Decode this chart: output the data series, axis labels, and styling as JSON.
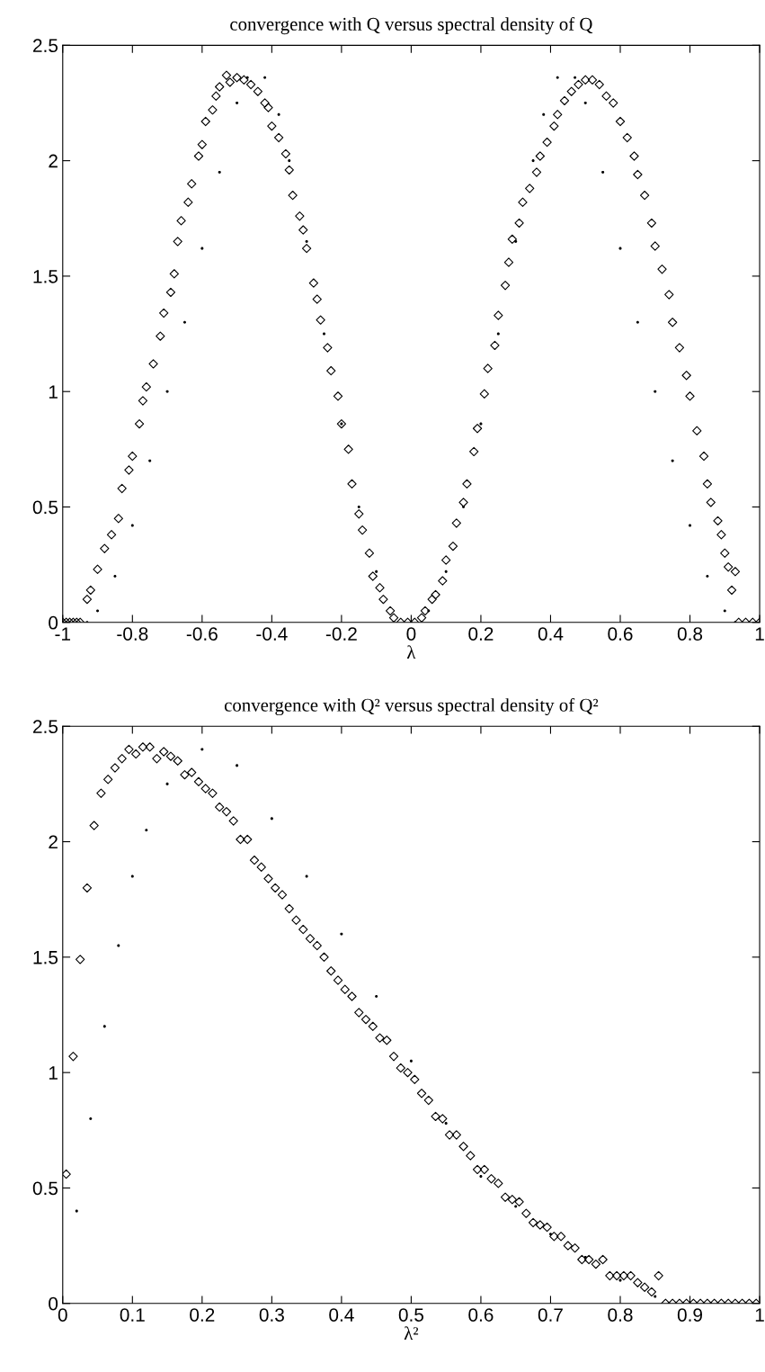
{
  "chart_data": [
    {
      "type": "scatter",
      "title": "convergence with Q versus spectral density of Q",
      "xlabel": "λ",
      "xlim": [
        -1,
        1
      ],
      "ylim": [
        0,
        2.5
      ],
      "xticks": [
        -1,
        -0.8,
        -0.6,
        -0.4,
        -0.2,
        0,
        0.2,
        0.4,
        0.6,
        0.8,
        1
      ],
      "yticks": [
        0,
        0.5,
        1,
        1.5,
        2,
        2.5
      ],
      "grid": false,
      "series": [
        {
          "color": "#000000",
          "marker": "circle",
          "x": [
            -0.93,
            -0.9,
            -0.85,
            -0.8,
            -0.75,
            -0.7,
            -0.65,
            -0.6,
            -0.55,
            -0.5,
            -0.47,
            -0.42,
            -0.38,
            -0.35,
            -0.3,
            -0.25,
            -0.2,
            -0.15,
            -0.1,
            -0.05,
            0,
            0.05,
            0.1,
            0.15,
            0.2,
            0.25,
            0.3,
            0.35,
            0.38,
            0.42,
            0.47,
            0.5,
            0.55,
            0.6,
            0.65,
            0.7,
            0.75,
            0.8,
            0.85,
            0.9,
            0.93
          ],
          "values": [
            0,
            0.05,
            0.2,
            0.42,
            0.7,
            1.0,
            1.3,
            1.62,
            1.95,
            2.25,
            2.36,
            2.36,
            2.2,
            2.0,
            1.65,
            1.25,
            0.86,
            0.5,
            0.22,
            null,
            0,
            0.05,
            0.22,
            0.5,
            0.86,
            1.25,
            1.65,
            2.0,
            2.2,
            2.36,
            2.36,
            2.25,
            1.95,
            1.62,
            1.3,
            1.0,
            0.7,
            0.42,
            0.2,
            0.05,
            0
          ]
        },
        {
          "color": "#000000",
          "marker": "diamond",
          "x": [
            -1,
            -0.99,
            -0.98,
            -0.97,
            -0.96,
            -0.95,
            -0.93,
            -0.92,
            -0.9,
            -0.88,
            -0.86,
            -0.84,
            -0.83,
            -0.81,
            -0.8,
            -0.78,
            -0.77,
            -0.76,
            -0.74,
            -0.72,
            -0.71,
            -0.69,
            -0.68,
            -0.67,
            -0.66,
            -0.64,
            -0.63,
            -0.61,
            -0.6,
            -0.59,
            -0.57,
            -0.56,
            -0.55,
            -0.53,
            -0.52,
            -0.5,
            -0.48,
            -0.46,
            -0.44,
            -0.42,
            -0.41,
            -0.4,
            -0.38,
            -0.36,
            -0.35,
            -0.34,
            -0.32,
            -0.31,
            -0.3,
            -0.28,
            -0.27,
            -0.26,
            -0.24,
            -0.23,
            -0.21,
            -0.2,
            -0.18,
            -0.17,
            -0.15,
            -0.14,
            -0.12,
            -0.11,
            -0.09,
            -0.08,
            -0.06,
            -0.05,
            -0.03,
            -0.01,
            0.01,
            0.03,
            0.04,
            0.06,
            0.07,
            0.09,
            0.1,
            0.12,
            0.13,
            0.15,
            0.16,
            0.18,
            0.19,
            0.21,
            0.22,
            0.24,
            0.25,
            0.27,
            0.28,
            0.29,
            0.31,
            0.32,
            0.34,
            0.36,
            0.37,
            0.39,
            0.41,
            0.42,
            0.44,
            0.46,
            0.48,
            0.5,
            0.52,
            0.54,
            0.56,
            0.58,
            0.6,
            0.62,
            0.64,
            0.65,
            0.67,
            0.69,
            0.7,
            0.72,
            0.74,
            0.75,
            0.77,
            0.79,
            0.8,
            0.82,
            0.84,
            0.85,
            0.86,
            0.88,
            0.89,
            0.9,
            0.91,
            0.92,
            0.93,
            0.94,
            0.96,
            0.98,
            1
          ],
          "values": [
            0,
            0,
            0,
            0,
            0,
            0,
            0.1,
            0.14,
            0.23,
            0.32,
            0.38,
            0.45,
            0.58,
            0.66,
            0.72,
            0.86,
            0.96,
            1.02,
            1.12,
            1.24,
            1.34,
            1.43,
            1.51,
            1.65,
            1.74,
            1.82,
            1.9,
            2.02,
            2.07,
            2.17,
            2.22,
            2.28,
            2.32,
            2.37,
            2.34,
            2.36,
            2.35,
            2.33,
            2.3,
            2.25,
            2.23,
            2.15,
            2.1,
            2.03,
            1.96,
            1.85,
            1.76,
            1.7,
            1.62,
            1.47,
            1.4,
            1.31,
            1.19,
            1.09,
            0.98,
            0.86,
            0.75,
            0.6,
            0.47,
            0.4,
            0.3,
            0.2,
            0.15,
            0.1,
            0.05,
            0.02,
            0,
            0,
            0,
            0.02,
            0.05,
            0.1,
            0.12,
            0.18,
            0.27,
            0.33,
            0.43,
            0.52,
            0.6,
            0.74,
            0.84,
            0.99,
            1.1,
            1.2,
            1.33,
            1.46,
            1.56,
            1.66,
            1.73,
            1.82,
            1.88,
            1.95,
            2.02,
            2.08,
            2.15,
            2.2,
            2.26,
            2.3,
            2.33,
            2.35,
            2.35,
            2.33,
            2.28,
            2.25,
            2.17,
            2.1,
            2.02,
            1.94,
            1.85,
            1.73,
            1.63,
            1.53,
            1.42,
            1.3,
            1.19,
            1.07,
            0.98,
            0.83,
            0.72,
            0.6,
            0.52,
            0.44,
            0.38,
            0.3,
            0.24,
            0.14,
            0.22,
            0,
            0,
            0,
            0
          ]
        }
      ]
    },
    {
      "type": "scatter",
      "title": "convergence with Q² versus spectral density of Q²",
      "xlabel": "λ²",
      "xlim": [
        0,
        1
      ],
      "ylim": [
        0,
        2.5
      ],
      "xticks": [
        0,
        0.1,
        0.2,
        0.3,
        0.4,
        0.5,
        0.6,
        0.7,
        0.8,
        0.9,
        1
      ],
      "yticks": [
        0,
        0.5,
        1,
        1.5,
        2,
        2.5
      ],
      "grid": false,
      "series": [
        {
          "color": "#000000",
          "marker": "circle",
          "x": [
            0.02,
            0.04,
            0.06,
            0.08,
            0.1,
            0.12,
            0.15,
            0.2,
            0.25,
            0.3,
            0.35,
            0.4,
            0.45,
            0.5,
            0.55,
            0.6,
            0.65,
            0.7,
            0.75,
            0.8,
            0.85,
            0.87
          ],
          "values": [
            0.4,
            0.8,
            1.2,
            1.55,
            1.85,
            2.05,
            2.25,
            2.4,
            2.33,
            2.1,
            1.85,
            1.6,
            1.33,
            1.05,
            0.78,
            0.55,
            0.42,
            0.3,
            0.2,
            0.1,
            0.03,
            0
          ]
        },
        {
          "color": "#000000",
          "marker": "diamond",
          "x": [
            0.005,
            0.015,
            0.025,
            0.035,
            0.045,
            0.055,
            0.065,
            0.075,
            0.085,
            0.095,
            0.105,
            0.115,
            0.125,
            0.135,
            0.145,
            0.155,
            0.165,
            0.175,
            0.185,
            0.195,
            0.205,
            0.215,
            0.225,
            0.235,
            0.245,
            0.255,
            0.265,
            0.275,
            0.285,
            0.295,
            0.305,
            0.315,
            0.325,
            0.335,
            0.345,
            0.355,
            0.365,
            0.375,
            0.385,
            0.395,
            0.405,
            0.415,
            0.425,
            0.435,
            0.445,
            0.455,
            0.465,
            0.475,
            0.485,
            0.495,
            0.505,
            0.515,
            0.525,
            0.535,
            0.545,
            0.555,
            0.565,
            0.575,
            0.585,
            0.595,
            0.605,
            0.615,
            0.625,
            0.635,
            0.645,
            0.655,
            0.665,
            0.675,
            0.685,
            0.695,
            0.705,
            0.715,
            0.725,
            0.735,
            0.745,
            0.755,
            0.765,
            0.775,
            0.785,
            0.795,
            0.805,
            0.815,
            0.825,
            0.835,
            0.845,
            0.855,
            0.865,
            0.875,
            0.885,
            0.895,
            0.905,
            0.915,
            0.925,
            0.935,
            0.945,
            0.955,
            0.965,
            0.975,
            0.985,
            0.995
          ],
          "values": [
            0.56,
            1.07,
            1.49,
            1.8,
            2.07,
            2.21,
            2.27,
            2.32,
            2.36,
            2.4,
            2.38,
            2.41,
            2.41,
            2.36,
            2.39,
            2.37,
            2.35,
            2.29,
            2.3,
            2.26,
            2.23,
            2.21,
            2.15,
            2.13,
            2.09,
            2.01,
            2.01,
            1.92,
            1.89,
            1.84,
            1.8,
            1.77,
            1.71,
            1.66,
            1.62,
            1.58,
            1.55,
            1.5,
            1.44,
            1.4,
            1.36,
            1.33,
            1.26,
            1.23,
            1.2,
            1.15,
            1.14,
            1.07,
            1.02,
            1.0,
            0.97,
            0.91,
            0.88,
            0.81,
            0.8,
            0.73,
            0.73,
            0.68,
            0.64,
            0.58,
            0.58,
            0.54,
            0.52,
            0.46,
            0.45,
            0.44,
            0.39,
            0.35,
            0.34,
            0.33,
            0.29,
            0.29,
            0.25,
            0.24,
            0.19,
            0.19,
            0.17,
            0.19,
            0.12,
            0.12,
            0.12,
            0.12,
            0.09,
            0.07,
            0.05,
            0.12,
            0,
            0,
            0,
            0,
            0,
            0,
            0,
            0,
            0,
            0,
            0,
            0,
            0,
            0
          ]
        }
      ]
    }
  ]
}
